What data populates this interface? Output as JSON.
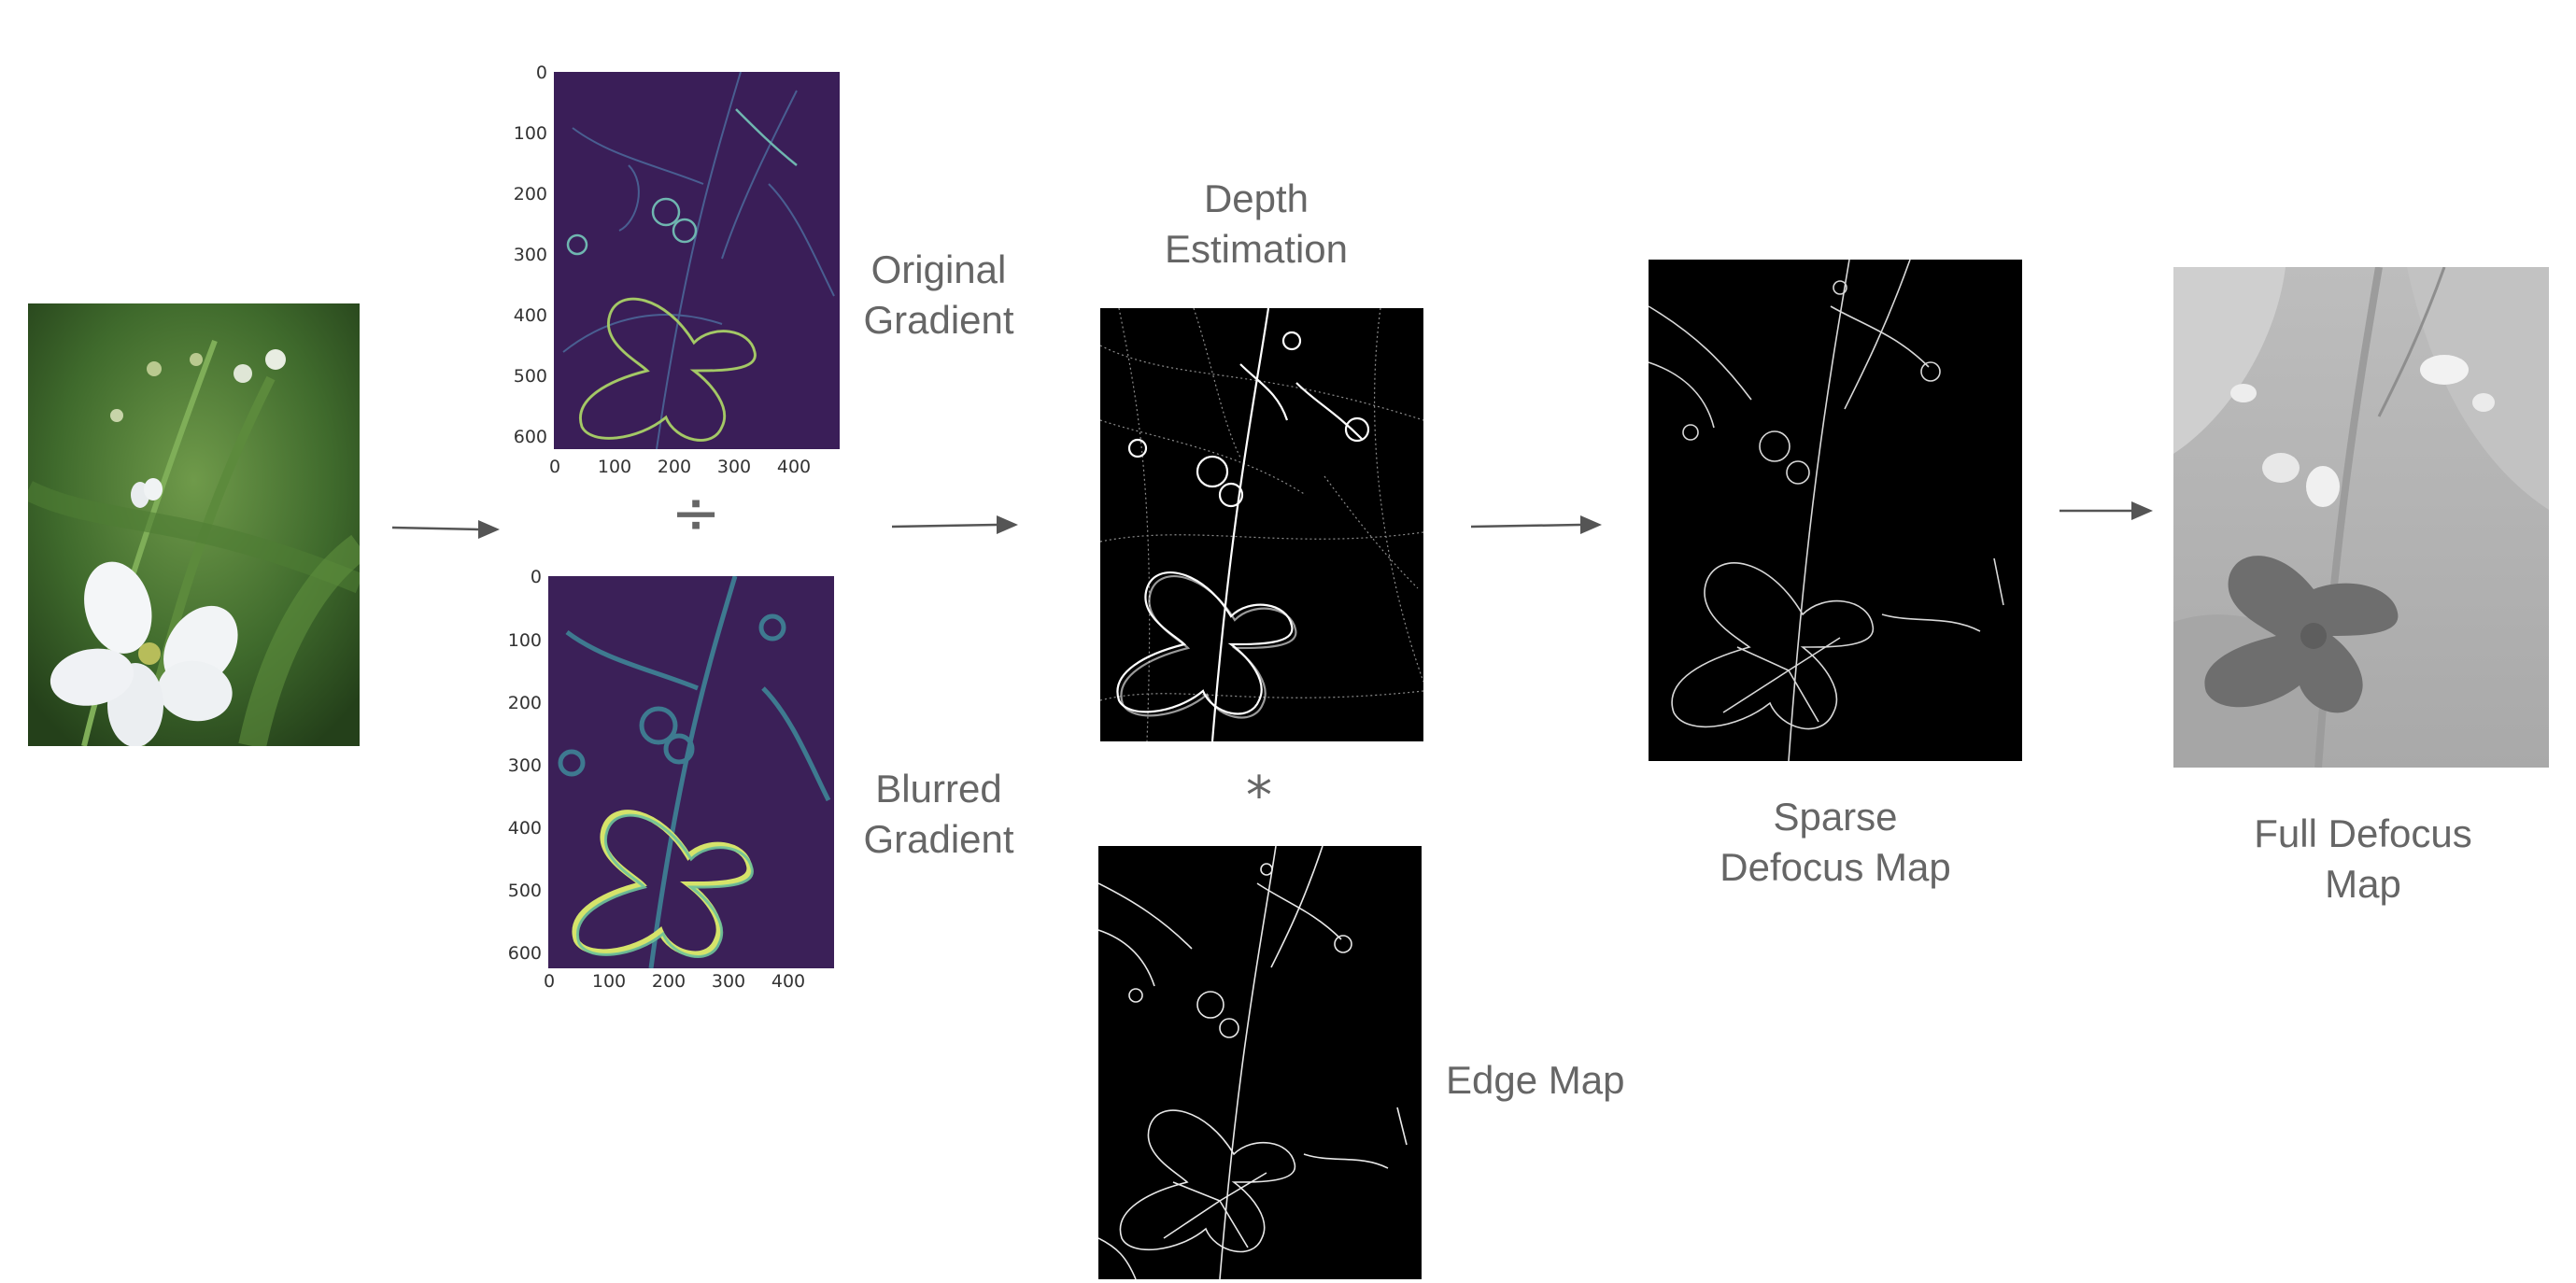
{
  "labels": {
    "original_gradient": [
      "Original",
      "Gradient"
    ],
    "blurred_gradient": [
      "Blurred",
      "Gradient"
    ],
    "depth_estimation": [
      "Depth",
      "Estimation"
    ],
    "edge_map": "Edge Map",
    "sparse_defocus_map": [
      "Sparse",
      "Defocus Map"
    ],
    "full_defocus_map": [
      "Full Defocus",
      "Map"
    ]
  },
  "operators": {
    "divide": "÷",
    "convolve": "*"
  },
  "gradient_plot_axes": {
    "y_ticks": [
      "0",
      "100",
      "200",
      "300",
      "400",
      "500",
      "600"
    ],
    "x_ticks": [
      "0",
      "100",
      "200",
      "300",
      "400"
    ]
  },
  "colors": {
    "text": "#666666",
    "arrow": "#555555",
    "viridis_dark": "#3b1f59",
    "viridis_light": "#c8e060"
  }
}
